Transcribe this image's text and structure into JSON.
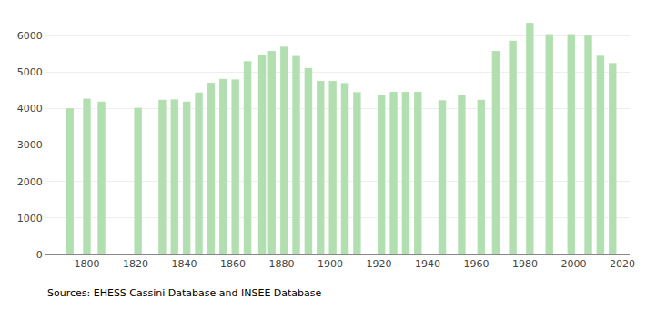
{
  "chart_data": {
    "type": "bar",
    "x": [
      1793,
      1800,
      1806,
      1821,
      1831,
      1836,
      1841,
      1846,
      1851,
      1856,
      1861,
      1866,
      1872,
      1876,
      1881,
      1886,
      1891,
      1896,
      1901,
      1906,
      1911,
      1921,
      1926,
      1931,
      1936,
      1946,
      1954,
      1962,
      1968,
      1975,
      1982,
      1990,
      1999,
      2006,
      2011,
      2016
    ],
    "values": [
      4010,
      4270,
      4190,
      4020,
      4240,
      4250,
      4190,
      4440,
      4710,
      4810,
      4800,
      5300,
      5480,
      5580,
      5700,
      5440,
      5110,
      4760,
      4760,
      4700,
      4450,
      4380,
      4460,
      4460,
      4460,
      4230,
      4380,
      4240,
      5580,
      5860,
      6350,
      6040,
      6040,
      6000,
      5450,
      5250
    ],
    "color": "#b2dfb0",
    "xlim": [
      1783,
      2023
    ],
    "xticks": [
      1800,
      1820,
      1840,
      1860,
      1880,
      1900,
      1920,
      1940,
      1960,
      1980,
      2000,
      2020
    ],
    "ylim": [
      0,
      6600
    ],
    "yticks": [
      0,
      1000,
      2000,
      3000,
      4000,
      5000,
      6000
    ],
    "grid": true,
    "annotations": [
      "Sources: EHESS Cassini Database and INSEE Database"
    ]
  }
}
